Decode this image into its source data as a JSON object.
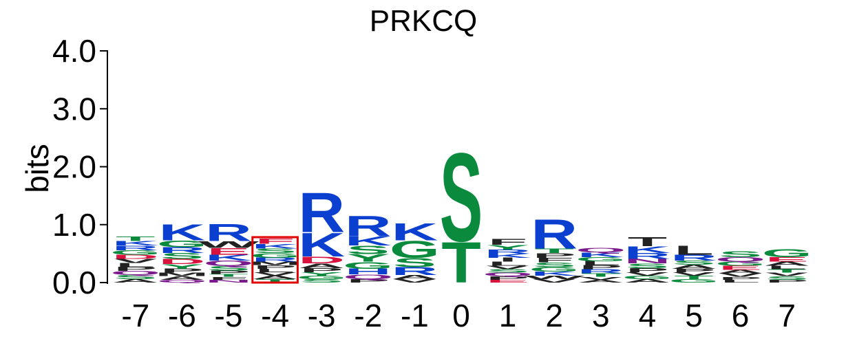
{
  "colors": {
    "blue": "#0a3fd0",
    "green": "#0a8a3c",
    "red": "#d8123c",
    "purple": "#7a1a8c",
    "black": "#222222",
    "axis": "#000000",
    "highlight": "#e00000"
  },
  "chart_data": {
    "type": "sequence-logo",
    "title": "PRKCQ",
    "ylabel": "bits",
    "ylim": [
      0,
      4
    ],
    "yticks": [
      "0.0",
      "1.0",
      "2.0",
      "3.0",
      "4.0"
    ],
    "xticks": [
      "-7",
      "-6",
      "-5",
      "-4",
      "-3",
      "-2",
      "-1",
      "0",
      "1",
      "2",
      "3",
      "4",
      "5",
      "6",
      "7"
    ],
    "highlighted_position": "-4",
    "positions": [
      {
        "pos": "-7",
        "letters": [
          {
            "aa": "A",
            "bits": 0.06,
            "color": "black"
          },
          {
            "aa": "G",
            "bits": 0.08,
            "color": "green"
          },
          {
            "aa": "S",
            "bits": 0.07,
            "color": "green"
          },
          {
            "aa": "Q",
            "bits": 0.07,
            "color": "purple"
          },
          {
            "aa": "R",
            "bits": 0.08,
            "color": "blue"
          },
          {
            "aa": "K",
            "bits": 0.08,
            "color": "blue"
          },
          {
            "aa": "P",
            "bits": 0.07,
            "color": "black"
          },
          {
            "aa": "L",
            "bits": 0.07,
            "color": "black"
          },
          {
            "aa": "V",
            "bits": 0.07,
            "color": "black"
          },
          {
            "aa": "T",
            "bits": 0.08,
            "color": "green"
          },
          {
            "aa": "D",
            "bits": 0.07,
            "color": "red"
          }
        ]
      },
      {
        "pos": "-6",
        "letters": [
          {
            "aa": "K",
            "bits": 0.28,
            "color": "blue"
          },
          {
            "aa": "G",
            "bits": 0.12,
            "color": "green"
          },
          {
            "aa": "S",
            "bits": 0.1,
            "color": "green"
          },
          {
            "aa": "D",
            "bits": 0.09,
            "color": "red"
          },
          {
            "aa": "R",
            "bits": 0.1,
            "color": "blue"
          },
          {
            "aa": "Y",
            "bits": 0.08,
            "color": "green"
          },
          {
            "aa": "P",
            "bits": 0.07,
            "color": "black"
          },
          {
            "aa": "A",
            "bits": 0.06,
            "color": "black"
          },
          {
            "aa": "M",
            "bits": 0.06,
            "color": "black"
          },
          {
            "aa": "Q",
            "bits": 0.05,
            "color": "purple"
          }
        ]
      },
      {
        "pos": "-5",
        "letters": [
          {
            "aa": "R",
            "bits": 0.3,
            "color": "blue"
          },
          {
            "aa": "E",
            "bits": 0.12,
            "color": "red"
          },
          {
            "aa": "K",
            "bits": 0.1,
            "color": "blue"
          },
          {
            "aa": "Q",
            "bits": 0.09,
            "color": "purple"
          },
          {
            "aa": "S",
            "bits": 0.08,
            "color": "green"
          },
          {
            "aa": "W",
            "bits": 0.12,
            "color": "black"
          },
          {
            "aa": "P",
            "bits": 0.06,
            "color": "black"
          },
          {
            "aa": "N",
            "bits": 0.05,
            "color": "purple"
          },
          {
            "aa": "F",
            "bits": 0.05,
            "color": "black"
          },
          {
            "aa": "T",
            "bits": 0.05,
            "color": "green"
          }
        ]
      },
      {
        "pos": "-4",
        "letters": [
          {
            "aa": "F",
            "bits": 0.09,
            "color": "red"
          },
          {
            "aa": "G",
            "bits": 0.08,
            "color": "green"
          },
          {
            "aa": "S",
            "bits": 0.08,
            "color": "green"
          },
          {
            "aa": "K",
            "bits": 0.08,
            "color": "blue"
          },
          {
            "aa": "R",
            "bits": 0.07,
            "color": "blue"
          },
          {
            "aa": "T",
            "bits": 0.06,
            "color": "green"
          },
          {
            "aa": "A",
            "bits": 0.06,
            "color": "black"
          },
          {
            "aa": "V",
            "bits": 0.06,
            "color": "black"
          },
          {
            "aa": "L",
            "bits": 0.06,
            "color": "black"
          },
          {
            "aa": "P",
            "bits": 0.06,
            "color": "black"
          },
          {
            "aa": "M",
            "bits": 0.06,
            "color": "black"
          }
        ]
      },
      {
        "pos": "-3",
        "letters": [
          {
            "aa": "R",
            "bits": 0.7,
            "color": "blue"
          },
          {
            "aa": "K",
            "bits": 0.42,
            "color": "blue"
          },
          {
            "aa": "D",
            "bits": 0.12,
            "color": "red"
          },
          {
            "aa": "A",
            "bits": 0.08,
            "color": "black"
          },
          {
            "aa": "P",
            "bits": 0.07,
            "color": "black"
          },
          {
            "aa": "S",
            "bits": 0.06,
            "color": "green"
          },
          {
            "aa": "G",
            "bits": 0.06,
            "color": "green"
          },
          {
            "aa": "Y",
            "bits": 0.06,
            "color": "green"
          }
        ]
      },
      {
        "pos": "-2",
        "letters": [
          {
            "aa": "R",
            "bits": 0.36,
            "color": "blue"
          },
          {
            "aa": "K",
            "bits": 0.16,
            "color": "blue"
          },
          {
            "aa": "S",
            "bits": 0.15,
            "color": "green"
          },
          {
            "aa": "Y",
            "bits": 0.13,
            "color": "green"
          },
          {
            "aa": "G",
            "bits": 0.12,
            "color": "green"
          },
          {
            "aa": "H",
            "bits": 0.1,
            "color": "blue"
          },
          {
            "aa": "Q",
            "bits": 0.08,
            "color": "purple"
          },
          {
            "aa": "P",
            "bits": 0.06,
            "color": "black"
          }
        ]
      },
      {
        "pos": "-1",
        "letters": [
          {
            "aa": "G",
            "bits": 0.3,
            "color": "green"
          },
          {
            "aa": "K",
            "bits": 0.3,
            "color": "blue"
          },
          {
            "aa": "S",
            "bits": 0.16,
            "color": "green"
          },
          {
            "aa": "R",
            "bits": 0.14,
            "color": "blue"
          },
          {
            "aa": "A",
            "bits": 0.07,
            "color": "black"
          },
          {
            "aa": "V",
            "bits": 0.06,
            "color": "black"
          }
        ]
      },
      {
        "pos": "0",
        "letters": [
          {
            "aa": "S",
            "bits": 1.56,
            "color": "green"
          },
          {
            "aa": "T",
            "bits": 0.72,
            "color": "green"
          }
        ]
      },
      {
        "pos": "1",
        "letters": [
          {
            "aa": "F",
            "bits": 0.1,
            "color": "black"
          },
          {
            "aa": "L",
            "bits": 0.07,
            "color": "black"
          },
          {
            "aa": "Y",
            "bits": 0.08,
            "color": "green"
          },
          {
            "aa": "I",
            "bits": 0.07,
            "color": "black"
          },
          {
            "aa": "P",
            "bits": 0.06,
            "color": "black"
          },
          {
            "aa": "K",
            "bits": 0.07,
            "color": "blue"
          },
          {
            "aa": "R",
            "bits": 0.07,
            "color": "blue"
          },
          {
            "aa": "Q",
            "bits": 0.06,
            "color": "purple"
          },
          {
            "aa": "S",
            "bits": 0.06,
            "color": "green"
          },
          {
            "aa": "V",
            "bits": 0.06,
            "color": "black"
          },
          {
            "aa": "E",
            "bits": 0.05,
            "color": "red"
          }
        ]
      },
      {
        "pos": "2",
        "letters": [
          {
            "aa": "R",
            "bits": 0.52,
            "color": "blue"
          },
          {
            "aa": "G",
            "bits": 0.08,
            "color": "green"
          },
          {
            "aa": "S",
            "bits": 0.08,
            "color": "green"
          },
          {
            "aa": "F",
            "bits": 0.08,
            "color": "black"
          },
          {
            "aa": "P",
            "bits": 0.08,
            "color": "black"
          },
          {
            "aa": "T",
            "bits": 0.08,
            "color": "green"
          },
          {
            "aa": "K",
            "bits": 0.07,
            "color": "blue"
          },
          {
            "aa": "V",
            "bits": 0.06,
            "color": "black"
          },
          {
            "aa": "W",
            "bits": 0.06,
            "color": "black"
          }
        ]
      },
      {
        "pos": "3",
        "letters": [
          {
            "aa": "K",
            "bits": 0.08,
            "color": "blue"
          },
          {
            "aa": "Q",
            "bits": 0.08,
            "color": "purple"
          },
          {
            "aa": "R",
            "bits": 0.07,
            "color": "blue"
          },
          {
            "aa": "P",
            "bits": 0.07,
            "color": "black"
          },
          {
            "aa": "L",
            "bits": 0.07,
            "color": "black"
          },
          {
            "aa": "G",
            "bits": 0.07,
            "color": "green"
          },
          {
            "aa": "T",
            "bits": 0.06,
            "color": "green"
          },
          {
            "aa": "A",
            "bits": 0.05,
            "color": "black"
          },
          {
            "aa": "V",
            "bits": 0.05,
            "color": "black"
          }
        ]
      },
      {
        "pos": "4",
        "letters": [
          {
            "aa": "T",
            "bits": 0.16,
            "color": "black"
          },
          {
            "aa": "K",
            "bits": 0.12,
            "color": "blue"
          },
          {
            "aa": "R",
            "bits": 0.1,
            "color": "blue"
          },
          {
            "aa": "S",
            "bits": 0.08,
            "color": "green"
          },
          {
            "aa": "N",
            "bits": 0.08,
            "color": "purple"
          },
          {
            "aa": "P",
            "bits": 0.07,
            "color": "black"
          },
          {
            "aa": "A",
            "bits": 0.06,
            "color": "black"
          },
          {
            "aa": "G",
            "bits": 0.06,
            "color": "green"
          },
          {
            "aa": "V",
            "bits": 0.06,
            "color": "black"
          }
        ]
      },
      {
        "pos": "5",
        "letters": [
          {
            "aa": "L",
            "bits": 0.16,
            "color": "black"
          },
          {
            "aa": "R",
            "bits": 0.1,
            "color": "blue"
          },
          {
            "aa": "A",
            "bits": 0.07,
            "color": "black"
          },
          {
            "aa": "S",
            "bits": 0.07,
            "color": "green"
          },
          {
            "aa": "G",
            "bits": 0.06,
            "color": "green"
          },
          {
            "aa": "T",
            "bits": 0.06,
            "color": "green"
          },
          {
            "aa": "V",
            "bits": 0.06,
            "color": "black"
          },
          {
            "aa": "P",
            "bits": 0.06,
            "color": "black"
          }
        ]
      },
      {
        "pos": "6",
        "letters": [
          {
            "aa": "S",
            "bits": 0.1,
            "color": "green"
          },
          {
            "aa": "Q",
            "bits": 0.08,
            "color": "purple"
          },
          {
            "aa": "E",
            "bits": 0.07,
            "color": "red"
          },
          {
            "aa": "G",
            "bits": 0.07,
            "color": "green"
          },
          {
            "aa": "V",
            "bits": 0.06,
            "color": "black"
          },
          {
            "aa": "A",
            "bits": 0.06,
            "color": "black"
          },
          {
            "aa": "L",
            "bits": 0.05,
            "color": "black"
          },
          {
            "aa": "P",
            "bits": 0.05,
            "color": "black"
          }
        ]
      },
      {
        "pos": "7",
        "letters": [
          {
            "aa": "G",
            "bits": 0.14,
            "color": "green"
          },
          {
            "aa": "E",
            "bits": 0.08,
            "color": "red"
          },
          {
            "aa": "A",
            "bits": 0.07,
            "color": "black"
          },
          {
            "aa": "S",
            "bits": 0.06,
            "color": "green"
          },
          {
            "aa": "V",
            "bits": 0.06,
            "color": "black"
          },
          {
            "aa": "T",
            "bits": 0.06,
            "color": "green"
          },
          {
            "aa": "L",
            "bits": 0.06,
            "color": "black"
          },
          {
            "aa": "P",
            "bits": 0.05,
            "color": "black"
          }
        ]
      }
    ]
  }
}
